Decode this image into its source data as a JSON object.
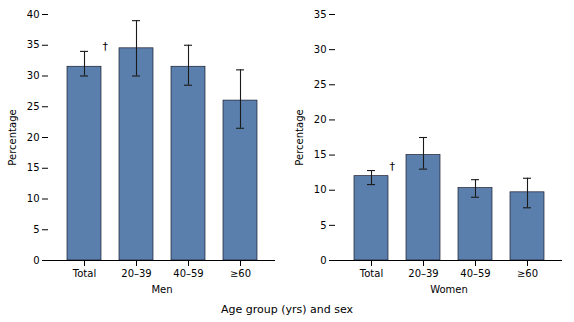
{
  "xlabel": "Age group (yrs) and sex",
  "chart_data": [
    {
      "type": "bar",
      "xlabel": "Men",
      "ylabel": "Percentage",
      "categories": [
        "Total",
        "20–39",
        "40–59",
        "≥60"
      ],
      "values": [
        31.5,
        34.5,
        31.5,
        26.0
      ],
      "err_low": [
        1.5,
        4.5,
        3.0,
        4.5
      ],
      "err_high": [
        2.5,
        4.5,
        3.5,
        5.0
      ],
      "color": "#5b7fac",
      "ylim": [
        0,
        40
      ],
      "yticks": [
        0,
        5,
        10,
        15,
        20,
        25,
        30,
        35,
        40
      ],
      "grid": false,
      "annotations": [
        {
          "text": "†",
          "category": "Total"
        }
      ]
    },
    {
      "type": "bar",
      "xlabel": "Women",
      "ylabel": "Percentage",
      "categories": [
        "Total",
        "20–39",
        "40–59",
        "≥60"
      ],
      "values": [
        12.0,
        15.0,
        10.3,
        9.7
      ],
      "err_low": [
        1.2,
        2.0,
        1.3,
        2.2
      ],
      "err_high": [
        0.8,
        2.5,
        1.2,
        2.0
      ],
      "color": "#5b7fac",
      "ylim": [
        0,
        35
      ],
      "yticks": [
        0,
        5,
        10,
        15,
        20,
        25,
        30,
        35
      ],
      "grid": false,
      "annotations": [
        {
          "text": "†",
          "category": "Total"
        }
      ]
    }
  ]
}
